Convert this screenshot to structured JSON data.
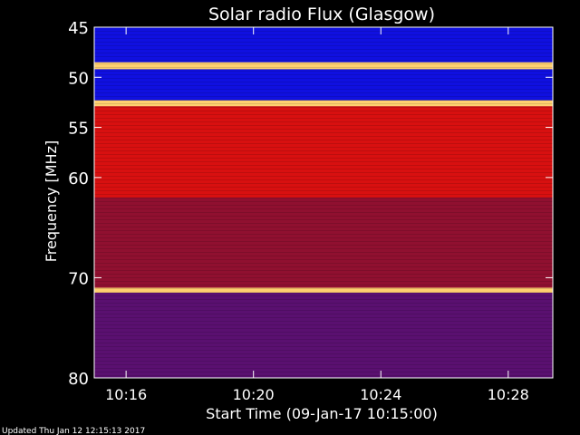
{
  "chart_data": {
    "type": "heatmap",
    "title": "Solar radio Flux (Glasgow)",
    "xlabel": "Start Time (09-Jan-17 10:15:00)",
    "ylabel": "Frequency [MHz]",
    "x_ticks": [
      "10:16",
      "10:20",
      "10:24",
      "10:28"
    ],
    "x_tick_minutes": [
      1,
      5,
      9,
      13
    ],
    "x_range_minutes": [
      0,
      14.4
    ],
    "y_ticks": [
      45,
      50,
      55,
      60,
      70,
      80
    ],
    "y_range_mhz": [
      45,
      80
    ],
    "bands_mhz": [
      {
        "from": 45,
        "to": 48.5,
        "level": "low"
      },
      {
        "from": 48.5,
        "to": 49.2,
        "level": "very-high"
      },
      {
        "from": 49.2,
        "to": 52.3,
        "level": "low"
      },
      {
        "from": 52.3,
        "to": 52.9,
        "level": "very-high"
      },
      {
        "from": 52.9,
        "to": 62,
        "level": "high"
      },
      {
        "from": 62,
        "to": 71,
        "level": "medium"
      },
      {
        "from": 71,
        "to": 71.5,
        "level": "very-high"
      },
      {
        "from": 71.5,
        "to": 80,
        "level": "medium-low"
      }
    ],
    "colors": {
      "low": "#1010e0",
      "medium-low": "#5a1070",
      "medium": "#901030",
      "high": "#d81010",
      "very-high": "#ffd070"
    }
  },
  "footer": {
    "updated": "Updated Thu Jan 12 12:15:13 2017"
  }
}
